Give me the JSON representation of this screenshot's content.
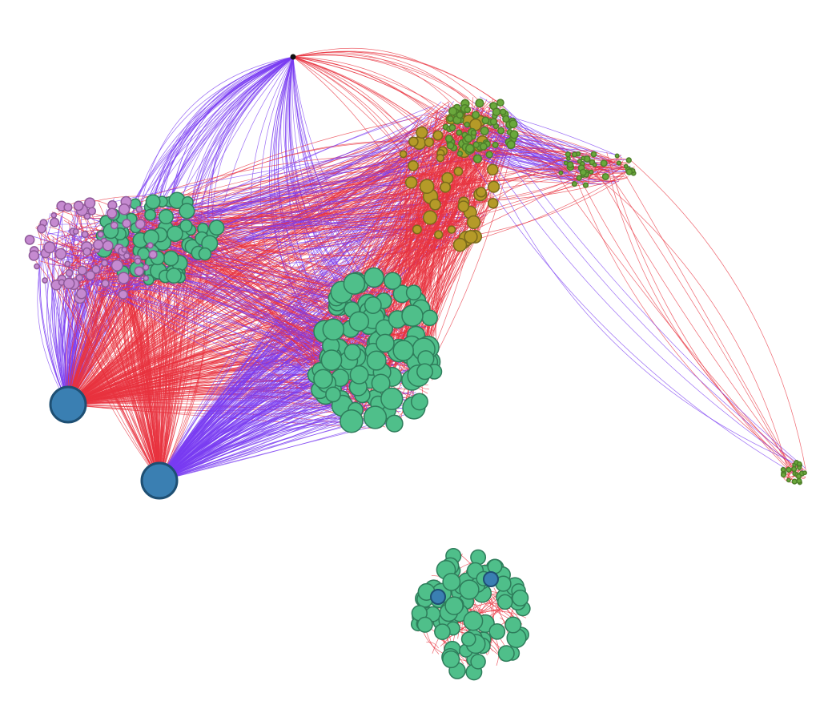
{
  "graph": {
    "type": "network-graph",
    "edge_colors": {
      "red": "#e8333f",
      "purple": "#7a3cf2"
    },
    "node_colors": {
      "teal": "#4fbf8a",
      "teal_stroke": "#2e7d5b",
      "blue": "#3a7fb2",
      "blue_stroke": "#1e4f73",
      "olive": "#b59a28",
      "olive_stroke": "#7a6a1c",
      "lilac": "#c58ad0",
      "lilac_stroke": "#8f5a99",
      "green": "#6aa83c",
      "black": "#111111"
    },
    "clusters": [
      {
        "name": "large-teal-cluster",
        "color": "teal"
      },
      {
        "name": "left-teal-cluster",
        "color": "teal"
      },
      {
        "name": "left-lilac-cluster",
        "color": "lilac"
      },
      {
        "name": "top-olive-cluster",
        "color": "olive"
      },
      {
        "name": "top-green-cluster",
        "color": "green"
      },
      {
        "name": "right-green-cluster",
        "color": "green"
      },
      {
        "name": "far-right-green-cluster",
        "color": "green"
      },
      {
        "name": "bottom-teal-component",
        "color": "teal"
      }
    ],
    "hubs": [
      {
        "name": "hub-node-left",
        "color": "blue"
      },
      {
        "name": "hub-node-bottom",
        "color": "blue"
      },
      {
        "name": "hub-node-top-black",
        "color": "black"
      }
    ]
  }
}
